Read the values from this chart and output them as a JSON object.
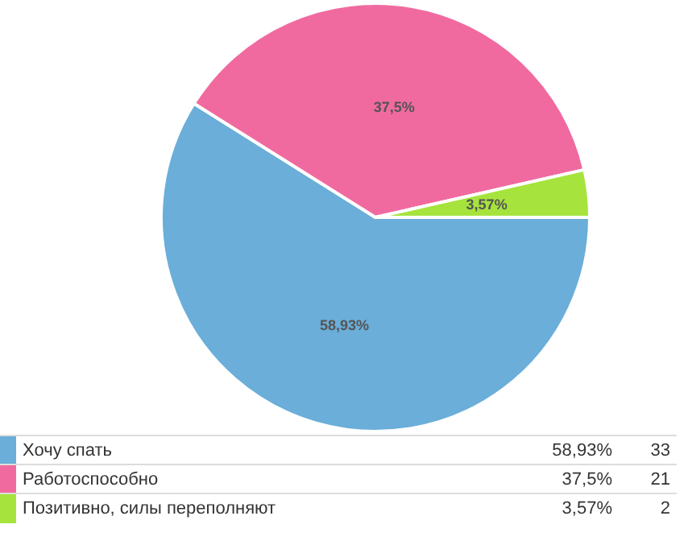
{
  "chart_data": {
    "type": "pie",
    "categories": [
      "Хочу спать",
      "Работоспособно",
      "Позитивно, силы переполняют"
    ],
    "values": [
      58.93,
      37.5,
      3.57
    ],
    "value_labels": [
      "58,93%",
      "37,5%",
      "3,57%"
    ],
    "annotations": [
      "33",
      "21",
      "2"
    ],
    "colors": [
      "#6aaed9",
      "#f06aa0",
      "#a6e33d"
    ],
    "legend": "bottom"
  }
}
